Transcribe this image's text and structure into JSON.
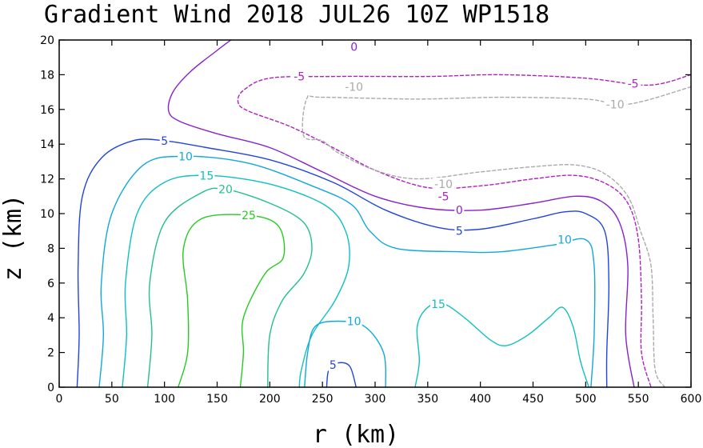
{
  "chart_data": {
    "type": "contour",
    "title": "Gradient Wind 2018 JUL26 10Z   WP1518",
    "xlabel": "r (km)",
    "ylabel": "z (km)",
    "xlim": [
      0,
      600
    ],
    "ylim": [
      0,
      20
    ],
    "x_ticks": [
      0,
      50,
      100,
      150,
      200,
      250,
      300,
      350,
      400,
      450,
      500,
      550,
      600
    ],
    "y_ticks": [
      0,
      2,
      4,
      6,
      8,
      10,
      12,
      14,
      16,
      18,
      20
    ],
    "contours": [
      {
        "level": "25",
        "color": "#22cc22",
        "dashed": false,
        "label_at": [
          180,
          9.9
        ],
        "points": [
          [
            113,
            0
          ],
          [
            122,
            2
          ],
          [
            122,
            5
          ],
          [
            118,
            8
          ],
          [
            135,
            9.7
          ],
          [
            180,
            9.9
          ],
          [
            208,
            9.3
          ],
          [
            213,
            7.5
          ],
          [
            195,
            6.5
          ],
          [
            175,
            4
          ],
          [
            175,
            2
          ],
          [
            172,
            0
          ]
        ]
      },
      {
        "level": "20",
        "color": "#22c08c",
        "dashed": false,
        "label_at": [
          158,
          11.4
        ],
        "points": [
          [
            84,
            0
          ],
          [
            88,
            3
          ],
          [
            86,
            6
          ],
          [
            100,
            9.5
          ],
          [
            135,
            11.2
          ],
          [
            158,
            11.4
          ],
          [
            200,
            10.6
          ],
          [
            232,
            9.5
          ],
          [
            240,
            8
          ],
          [
            232,
            6.5
          ],
          [
            212,
            5
          ],
          [
            200,
            3
          ],
          [
            198,
            0
          ]
        ]
      },
      {
        "level": "15",
        "color": "#10c0c0",
        "dashed": false,
        "label_at": [
          140,
          12.2
        ],
        "points": [
          [
            60,
            0
          ],
          [
            64,
            3
          ],
          [
            63,
            6
          ],
          [
            74,
            10
          ],
          [
            100,
            11.8
          ],
          [
            140,
            12.2
          ],
          [
            200,
            11.7
          ],
          [
            252,
            10.5
          ],
          [
            272,
            9
          ],
          [
            275,
            7
          ],
          [
            262,
            5
          ],
          [
            240,
            3
          ],
          [
            230,
            1
          ],
          [
            228,
            0
          ]
        ]
      },
      {
        "level": "10",
        "color": "#10a8dc",
        "dashed": false,
        "label_at": [
          120,
          13.3
        ],
        "points": [
          [
            38,
            0
          ],
          [
            42,
            3
          ],
          [
            40,
            6
          ],
          [
            50,
            10
          ],
          [
            80,
            12.8
          ],
          [
            120,
            13.3
          ],
          [
            180,
            12.9
          ],
          [
            240,
            11.6
          ],
          [
            278,
            10.5
          ],
          [
            295,
            9
          ],
          [
            320,
            8
          ],
          [
            380,
            7.8
          ],
          [
            420,
            7.8
          ],
          [
            470,
            8.2
          ],
          [
            500,
            8.5
          ],
          [
            508,
            7
          ],
          [
            508,
            3
          ],
          [
            505,
            0
          ]
        ]
      },
      {
        "level": "5",
        "color": "#2244dd",
        "dashed": false,
        "label_at": [
          100,
          14.2
        ],
        "points": [
          [
            17,
            0
          ],
          [
            19,
            3
          ],
          [
            18,
            7
          ],
          [
            22,
            11
          ],
          [
            40,
            13.2
          ],
          [
            70,
            14.2
          ],
          [
            100,
            14.2
          ],
          [
            140,
            13.8
          ],
          [
            200,
            13.1
          ],
          [
            260,
            11.8
          ],
          [
            310,
            10.2
          ],
          [
            360,
            9.2
          ],
          [
            400,
            9.1
          ],
          [
            450,
            9.7
          ],
          [
            480,
            10.1
          ],
          [
            500,
            10
          ],
          [
            518,
            9
          ],
          [
            522,
            6
          ],
          [
            520,
            2
          ],
          [
            520,
            0
          ]
        ]
      },
      {
        "level": "0",
        "color": "#8822cc",
        "dashed": false,
        "label_at": [
          280,
          19.6
        ],
        "points": [
          [
            163,
            20
          ],
          [
            150,
            19.4
          ],
          [
            125,
            18.2
          ],
          [
            108,
            17
          ],
          [
            104,
            15.9
          ],
          [
            115,
            15.3
          ],
          [
            150,
            14.6
          ],
          [
            200,
            13.8
          ],
          [
            250,
            12.4
          ],
          [
            300,
            11
          ],
          [
            350,
            10.3
          ],
          [
            400,
            10.2
          ],
          [
            450,
            10.6
          ],
          [
            490,
            11
          ],
          [
            515,
            10.7
          ],
          [
            532,
            9.5
          ],
          [
            540,
            7
          ],
          [
            538,
            3
          ],
          [
            546,
            0
          ]
        ]
      },
      {
        "level": "-5",
        "color": "#b020c0",
        "dashed": true,
        "label_at": [
          228,
          17.9
        ],
        "points": [
          [
            600,
            18
          ],
          [
            560,
            17.4
          ],
          [
            500,
            17.8
          ],
          [
            420,
            18
          ],
          [
            350,
            17.9
          ],
          [
            260,
            17.9
          ],
          [
            200,
            17.8
          ],
          [
            175,
            17.1
          ],
          [
            170,
            16.4
          ],
          [
            180,
            15.9
          ],
          [
            220,
            15
          ],
          [
            260,
            13.8
          ],
          [
            300,
            12.5
          ],
          [
            350,
            11.5
          ],
          [
            400,
            11.6
          ],
          [
            450,
            12
          ],
          [
            490,
            12.2
          ],
          [
            520,
            11.7
          ],
          [
            540,
            10.6
          ],
          [
            550,
            8.5
          ],
          [
            553,
            5
          ],
          [
            553,
            2
          ],
          [
            562,
            0
          ]
        ]
      },
      {
        "level": "-10",
        "color": "#aaaaaa",
        "dashed": true,
        "label_at": [
          280,
          17.3
        ],
        "points": [
          [
            600,
            17.3
          ],
          [
            540,
            16.3
          ],
          [
            500,
            16.6
          ],
          [
            420,
            16.7
          ],
          [
            340,
            16.6
          ],
          [
            250,
            16.7
          ],
          [
            235,
            16.6
          ],
          [
            232,
            14.5
          ],
          [
            250,
            14.2
          ],
          [
            265,
            13.5
          ],
          [
            300,
            12.5
          ],
          [
            340,
            12
          ],
          [
            400,
            12.4
          ],
          [
            450,
            12.7
          ],
          [
            490,
            12.8
          ],
          [
            518,
            12.3
          ],
          [
            540,
            11
          ],
          [
            552,
            9
          ],
          [
            562,
            7
          ],
          [
            564,
            4
          ],
          [
            566,
            1
          ],
          [
            575,
            0
          ]
        ]
      },
      {
        "level": "10",
        "color": "#10a8dc",
        "dashed": false,
        "label_at": [
          280,
          3.8
        ],
        "points": [
          [
            233,
            0
          ],
          [
            236,
            2
          ],
          [
            243,
            3.5
          ],
          [
            265,
            3.8
          ],
          [
            290,
            3.5
          ],
          [
            308,
            2
          ],
          [
            310,
            0
          ]
        ]
      },
      {
        "level": "5",
        "color": "#2244dd",
        "dashed": false,
        "label_at": [
          260,
          1.3
        ],
        "points": [
          [
            254,
            0
          ],
          [
            256,
            1
          ],
          [
            265,
            1.4
          ],
          [
            276,
            1.2
          ],
          [
            282,
            0
          ]
        ]
      },
      {
        "level": "15",
        "color": "#10c0c0",
        "dashed": false,
        "label_at": [
          360,
          4.8
        ],
        "points": [
          [
            338,
            0
          ],
          [
            342,
            1.5
          ],
          [
            340,
            3.5
          ],
          [
            350,
            4.6
          ],
          [
            365,
            4.8
          ],
          [
            385,
            4
          ],
          [
            410,
            2.7
          ],
          [
            425,
            2.4
          ],
          [
            445,
            3
          ],
          [
            465,
            4
          ],
          [
            478,
            4.6
          ],
          [
            488,
            3.5
          ],
          [
            495,
            1.5
          ],
          [
            503,
            0
          ]
        ]
      }
    ]
  },
  "labels": {
    "x_tick_labels": [
      "0",
      "50",
      "100",
      "150",
      "200",
      "250",
      "300",
      "350",
      "400",
      "450",
      "500",
      "550",
      "600"
    ],
    "y_tick_labels": [
      "0",
      "2",
      "4",
      "6",
      "8",
      "10",
      "12",
      "14",
      "16",
      "18",
      "20"
    ],
    "extra_contour_labels": [
      {
        "text": "-5",
        "color": "#b020c0",
        "at": [
          545,
          17.5
        ]
      },
      {
        "text": "-10",
        "color": "#aaaaaa",
        "at": [
          528,
          16.3
        ]
      },
      {
        "text": "-10",
        "color": "#aaaaaa",
        "at": [
          365,
          11.7
        ]
      },
      {
        "text": "-5",
        "color": "#b020c0",
        "at": [
          365,
          11
        ]
      },
      {
        "text": "0",
        "color": "#8822cc",
        "at": [
          380,
          10.2
        ]
      },
      {
        "text": "5",
        "color": "#2244dd",
        "at": [
          380,
          9
        ]
      },
      {
        "text": "10",
        "color": "#10a8dc",
        "at": [
          480,
          8.5
        ]
      }
    ]
  }
}
